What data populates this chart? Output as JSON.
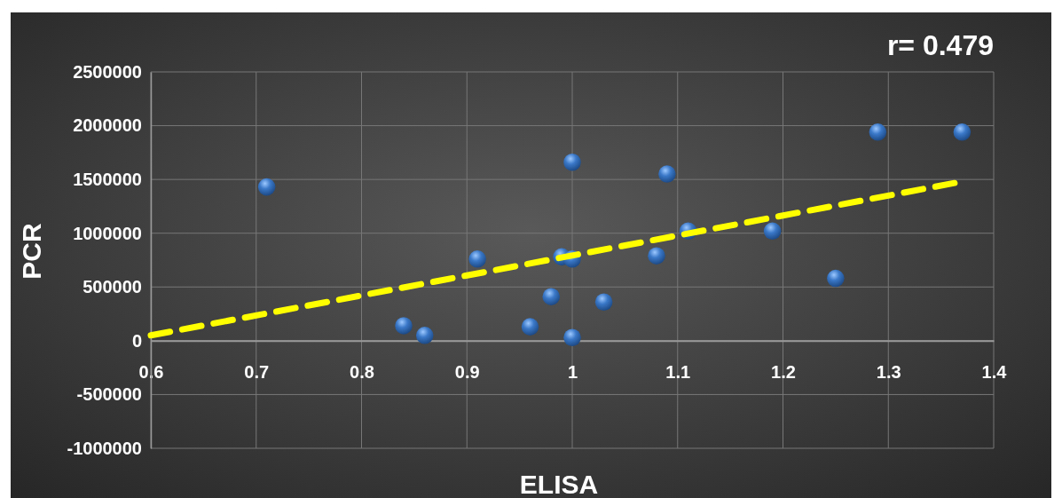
{
  "chart_data": {
    "type": "scatter",
    "xlabel": "ELISA",
    "ylabel": "PCR",
    "annotations": [
      "r= 0.479"
    ],
    "xlim": [
      0.6,
      1.4
    ],
    "xticks": [
      0.6,
      0.7,
      0.8,
      0.9,
      1,
      1.1,
      1.2,
      1.3,
      1.4
    ],
    "ylim": [
      -1000000,
      2500000
    ],
    "yticks": [
      -1000000,
      -500000,
      0,
      500000,
      1000000,
      1500000,
      2000000,
      2500000
    ],
    "grid": true,
    "marker": "circle",
    "series": [
      {
        "color": "#3a78c8",
        "x": [
          0.71,
          0.84,
          0.86,
          0.91,
          0.96,
          0.98,
          0.99,
          1,
          1,
          1,
          1.03,
          1.08,
          1.09,
          1.11,
          1.19,
          1.25,
          1.29,
          1.37
        ],
        "values": [
          1430000,
          140000,
          50000,
          760000,
          130000,
          410000,
          780000,
          1660000,
          760000,
          30000,
          360000,
          790000,
          1550000,
          1020000,
          1020000,
          580000,
          1940000,
          1940000
        ]
      },
      {
        "type": "line",
        "color": "#ffff00",
        "line_style": "dashed",
        "marker": "none",
        "x": [
          0.6,
          1.37
        ],
        "values": [
          50000,
          1480000
        ]
      }
    ]
  }
}
